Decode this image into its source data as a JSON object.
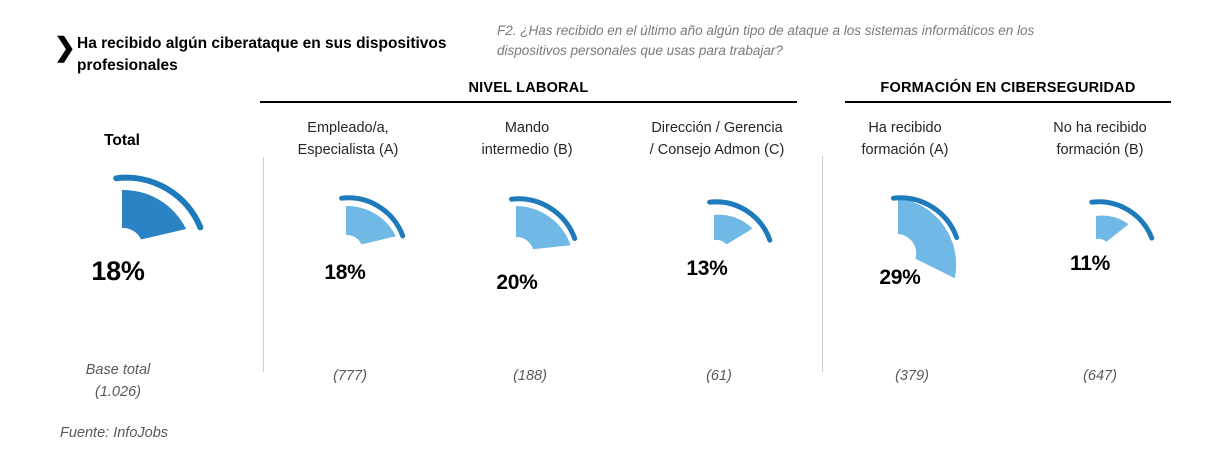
{
  "title": {
    "arrow": "❯",
    "text": "Ha recibido algún ciberataque en sus dispositivos profesionales"
  },
  "question": "F2. ¿Has recibido en el último año algún tipo de ataque a los sistemas informáticos en los dispositivos personales que usas para trabajar?",
  "groups": [
    {
      "label": "NIVEL LABORAL"
    },
    {
      "label": "FORMACIÓN EN CIBERSEGURIDAD"
    }
  ],
  "columns": [
    {
      "label": "Total",
      "value": "18%",
      "base": "Base total\n(1.026)"
    },
    {
      "label": "Empleado/a,\nEspecialista (A)",
      "value": "18%",
      "base": "(777)"
    },
    {
      "label": "Mando\nintermedio (B)",
      "value": "20%",
      "base": "(188)"
    },
    {
      "label": "Dirección / Gerencia\n/ Consejo Admon (C)",
      "value": "13%",
      "base": "(61)"
    },
    {
      "label": "Ha recibido\nformación (A)",
      "value": "29%",
      "base": "(379)"
    },
    {
      "label": "No ha recibido\nformación (B)",
      "value": "11%",
      "base": "(647)"
    }
  ],
  "source": "Fuente: InfoJobs",
  "chart_data": {
    "type": "pie",
    "title": "Ha recibido algún ciberataque en sus dispositivos profesionales",
    "subtitle": "F2. ¿Has recibido en el último año algún tipo de ataque a los sistemas informáticos en los dispositivos personales que usas para trabajar?",
    "unit": "%",
    "categories": [
      "Total",
      "Empleado/a, Especialista (A)",
      "Mando intermedio (B)",
      "Dirección / Gerencia / Consejo Admon (C)",
      "Ha recibido formación (A)",
      "No ha recibido formación (B)"
    ],
    "values": [
      18,
      18,
      20,
      13,
      29,
      11
    ],
    "bases": [
      1026,
      777,
      188,
      61,
      379,
      647
    ],
    "group_headers": [
      {
        "label": "NIVEL LABORAL",
        "columns": [
          "Empleado/a, Especialista (A)",
          "Mando intermedio (B)",
          "Dirección / Gerencia / Consejo Admon (C)"
        ]
      },
      {
        "label": "FORMACIÓN EN CIBERSEGURIDAD",
        "columns": [
          "Ha recibido formación (A)",
          "No ha recibido formación (B)"
        ]
      }
    ],
    "source": "Fuente: InfoJobs",
    "colors": {
      "fill_total": "#2B83C6",
      "fill_segment": "#70B9E7",
      "arc_stroke": "#1E7BBB",
      "text_muted": "#595959",
      "divider": "#cfcfcf"
    }
  }
}
